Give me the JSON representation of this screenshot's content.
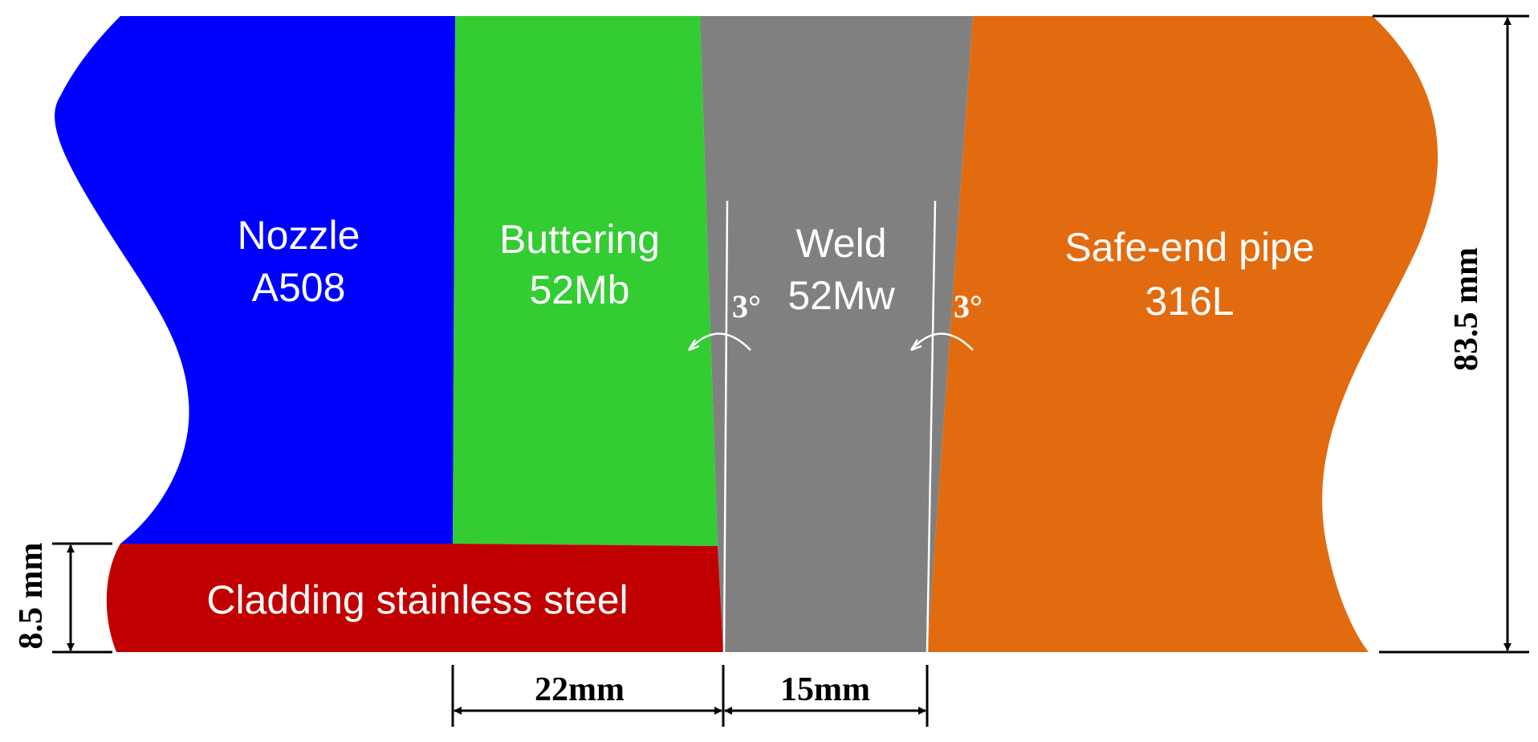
{
  "colors": {
    "nozzle": "#0000ff",
    "buttering": "#33cc33",
    "weld": "#808080",
    "safe_end": "#e26b10",
    "cladding": "#c00000",
    "dimension": "#000000"
  },
  "regions": {
    "nozzle": {
      "line1": "Nozzle",
      "line2": "A508"
    },
    "buttering": {
      "line1": "Buttering",
      "line2": "52Mb"
    },
    "weld": {
      "line1": "Weld",
      "line2": "52Mw"
    },
    "safe_end": {
      "line1": "Safe-end pipe",
      "line2": "316L"
    },
    "cladding": {
      "label": "Cladding stainless steel"
    }
  },
  "angles": {
    "left": "3°",
    "right": "3°"
  },
  "dimensions": {
    "buttering_width": "22mm",
    "weld_width": "15mm",
    "cladding_thickness": "8.5 mm",
    "total_thickness": "83.5 mm"
  }
}
